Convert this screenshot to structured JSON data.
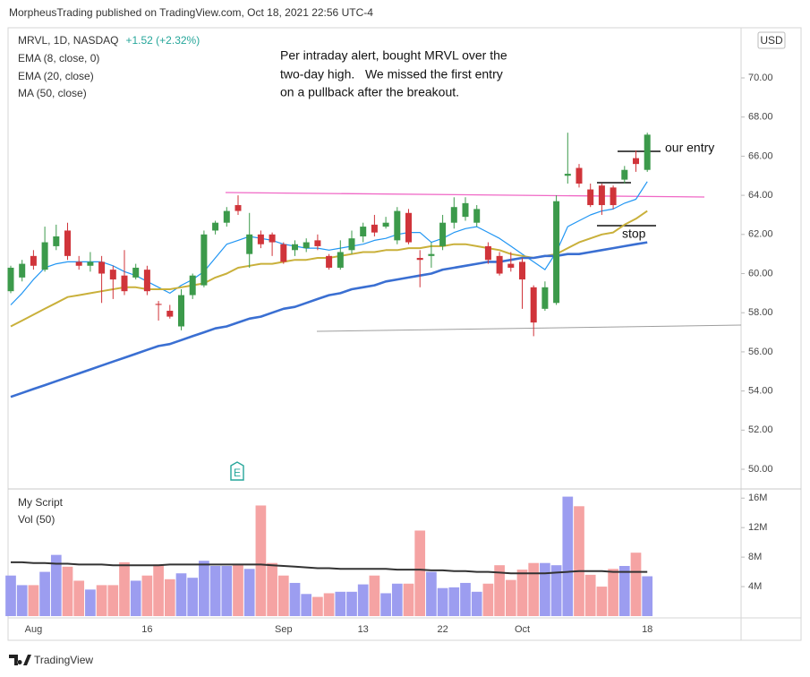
{
  "header": "MorpheusTrading published on TradingView.com, Oct 18, 2021 22:56 UTC-4",
  "footer": "TradingView",
  "chart_data": [
    {
      "type": "candlestick",
      "symbol": "MRVL, 1D, NASDAQ",
      "change": "+1.52 (+2.32%)",
      "currency": "USD",
      "note": [
        "Per intraday alert, bought MRVL over the",
        "two-day high.   We missed the first entry",
        "on a pullback after the breakout."
      ],
      "annotations": [
        "our entry",
        "stop"
      ],
      "earnings": "E",
      "up_color": "#3c9a4b",
      "down_color": "#d0343a",
      "categories": [
        null,
        null,
        "Aug",
        null,
        null,
        null,
        null,
        null,
        null,
        null,
        null,
        null,
        "16",
        null,
        null,
        null,
        null,
        null,
        null,
        null,
        null,
        null,
        null,
        null,
        "Sep",
        null,
        null,
        null,
        null,
        null,
        null,
        "13",
        null,
        null,
        null,
        null,
        null,
        null,
        "22",
        null,
        null,
        null,
        null,
        null,
        null,
        "Oct",
        null,
        null,
        null,
        null,
        null,
        null,
        null,
        null,
        null,
        null,
        "18"
      ],
      "open": [
        59.1,
        59.8,
        60.9,
        60.2,
        61.4,
        62.2,
        60.6,
        60.4,
        60.6,
        60.2,
        59.9,
        59.8,
        60.2,
        58.45,
        58.1,
        57.3,
        58.9,
        59.4,
        62.2,
        62.6,
        63.5,
        61.0,
        62.0,
        62.0,
        61.5,
        61.2,
        61.3,
        61.7,
        60.9,
        60.3,
        61.2,
        61.9,
        62.5,
        62.4,
        61.7,
        63.1,
        60.8,
        60.9,
        61.4,
        62.6,
        62.9,
        62.6,
        61.4,
        60.9,
        60.5,
        60.6,
        59.3,
        58.2,
        58.5,
        65.0,
        65.4,
        64.3,
        64.5,
        64.4,
        64.8,
        65.9,
        65.3
      ],
      "high": [
        60.4,
        60.7,
        61.2,
        62.4,
        62.5,
        62.6,
        60.9,
        61.1,
        60.9,
        60.4,
        61.2,
        60.5,
        60.4,
        58.6,
        58.4,
        59.2,
        60.0,
        62.2,
        62.7,
        63.4,
        64.0,
        63.1,
        62.2,
        62.1,
        61.6,
        61.7,
        61.8,
        62.0,
        61.0,
        61.7,
        62.2,
        62.6,
        63.0,
        62.9,
        63.4,
        63.3,
        61.2,
        61.6,
        63.0,
        63.9,
        63.9,
        63.5,
        61.6,
        61.1,
        61.1,
        60.8,
        59.4,
        59.6,
        64.0,
        67.2,
        65.6,
        64.6,
        64.6,
        64.5,
        65.5,
        66.3,
        67.2
      ],
      "low": [
        59.0,
        59.6,
        60.2,
        60.1,
        61.2,
        60.7,
        60.2,
        60.1,
        58.5,
        58.7,
        58.9,
        59.7,
        58.9,
        57.6,
        57.7,
        57.1,
        58.7,
        59.3,
        62.0,
        62.4,
        63.0,
        60.3,
        61.3,
        60.9,
        60.5,
        60.9,
        61.1,
        61.2,
        60.2,
        60.2,
        61.0,
        61.6,
        61.9,
        62.3,
        61.5,
        61.5,
        59.3,
        60.3,
        61.2,
        62.3,
        62.7,
        62.4,
        60.5,
        59.9,
        60.1,
        58.2,
        56.8,
        58.1,
        58.4,
        64.6,
        64.4,
        63.4,
        63.0,
        63.3,
        64.6,
        65.2,
        65.2
      ],
      "close": [
        60.3,
        60.5,
        60.4,
        61.6,
        61.9,
        60.9,
        60.4,
        60.6,
        60.0,
        59.7,
        59.1,
        60.3,
        59.1,
        58.4,
        57.8,
        58.9,
        59.9,
        62.0,
        62.6,
        63.2,
        63.2,
        62.0,
        61.5,
        61.6,
        60.6,
        61.5,
        61.6,
        61.4,
        60.3,
        61.1,
        61.8,
        62.4,
        62.1,
        62.6,
        63.2,
        61.6,
        60.7,
        61.0,
        62.6,
        63.4,
        63.6,
        63.3,
        60.7,
        60.0,
        60.3,
        59.7,
        57.5,
        59.3,
        63.7,
        65.1,
        64.6,
        63.5,
        63.5,
        63.5,
        65.3,
        65.6,
        67.1
      ],
      "series": [
        {
          "name": "EMA (8, close, 0)",
          "color": "#2196f3",
          "width": 1.2,
          "values": [
            58.4,
            59.0,
            59.7,
            60.3,
            60.5,
            60.6,
            60.6,
            60.6,
            60.6,
            60.4,
            60.1,
            59.9,
            59.6,
            59.3,
            59.0,
            59.4,
            59.7,
            60.1,
            60.8,
            61.5,
            61.7,
            61.9,
            61.8,
            61.7,
            61.5,
            61.4,
            61.3,
            61.3,
            61.2,
            61.3,
            61.4,
            61.5,
            61.7,
            61.8,
            62.0,
            62.1,
            62.1,
            61.6,
            61.8,
            62.1,
            62.3,
            62.4,
            62.1,
            61.8,
            61.4,
            61.0,
            60.6,
            60.2,
            61.1,
            62.4,
            62.7,
            63.0,
            63.2,
            63.3,
            63.6,
            63.8,
            64.7
          ]
        },
        {
          "name": "EMA (20, close)",
          "color": "#c9b03a",
          "width": 2,
          "values": [
            57.3,
            57.6,
            57.9,
            58.2,
            58.5,
            58.8,
            58.9,
            59.0,
            59.1,
            59.2,
            59.3,
            59.3,
            59.2,
            59.2,
            59.2,
            59.3,
            59.4,
            59.5,
            59.8,
            60.0,
            60.3,
            60.4,
            60.5,
            60.5,
            60.6,
            60.7,
            60.7,
            60.8,
            60.8,
            60.9,
            61.0,
            61.1,
            61.1,
            61.2,
            61.2,
            61.3,
            61.3,
            61.4,
            61.4,
            61.5,
            61.5,
            61.4,
            61.3,
            61.2,
            61.0,
            60.9,
            60.8,
            60.9,
            61.0,
            61.3,
            61.6,
            61.8,
            62.0,
            62.1,
            62.5,
            62.8,
            63.2
          ]
        },
        {
          "name": "MA (50, close)",
          "color": "#3a6fd2",
          "width": 2.6,
          "values": [
            53.7,
            53.9,
            54.1,
            54.3,
            54.5,
            54.7,
            54.9,
            55.1,
            55.3,
            55.5,
            55.7,
            55.9,
            56.1,
            56.3,
            56.4,
            56.6,
            56.8,
            57.0,
            57.2,
            57.3,
            57.5,
            57.7,
            57.8,
            58.0,
            58.2,
            58.3,
            58.5,
            58.7,
            58.9,
            59.0,
            59.2,
            59.3,
            59.4,
            59.6,
            59.7,
            59.8,
            59.9,
            60.0,
            60.2,
            60.3,
            60.4,
            60.5,
            60.6,
            60.6,
            60.7,
            60.8,
            60.8,
            60.9,
            60.9,
            61.0,
            61.0,
            61.1,
            61.2,
            61.3,
            61.4,
            61.5,
            61.6
          ]
        }
      ],
      "ylim": [
        49.04,
        72.38
      ],
      "yticks": [
        {
          "value": 50,
          "label": "50.00"
        },
        {
          "value": 52,
          "label": "52.00"
        },
        {
          "value": 54,
          "label": "54.00"
        },
        {
          "value": 56,
          "label": "56.00"
        },
        {
          "value": 58,
          "label": "58.00"
        },
        {
          "value": 60,
          "label": "60.00"
        },
        {
          "value": 62,
          "label": "62.00"
        },
        {
          "value": 64,
          "label": "64.00"
        },
        {
          "value": 66,
          "label": "66.00"
        },
        {
          "value": 68,
          "label": "68.00"
        },
        {
          "value": 70,
          "label": "70.00"
        }
      ],
      "grid": false
    },
    {
      "type": "bar",
      "title": "My Script",
      "up_color": "#9c9df0",
      "down_color": "#f5a3a3",
      "values": [
        5500000,
        4200000,
        4200000,
        6000000,
        8300000,
        6700000,
        4800000,
        3600000,
        4200000,
        4200000,
        7300000,
        4800000,
        5500000,
        7000000,
        5000000,
        5800000,
        5200000,
        7500000,
        6800000,
        6800000,
        6900000,
        6400000,
        15000000,
        7200000,
        5500000,
        4500000,
        3000000,
        2600000,
        3100000,
        3300000,
        3300000,
        4300000,
        5500000,
        3100000,
        4400000,
        4400000,
        11600000,
        6000000,
        3800000,
        3900000,
        4500000,
        3300000,
        4400000,
        6900000,
        4900000,
        6300000,
        7200000,
        7200000,
        6900000,
        16200000,
        14900000,
        5600000,
        4000000,
        6400000,
        6800000,
        8600000,
        5400000
      ],
      "series": [
        {
          "name": "Vol (50)",
          "color": "#333333",
          "width": 2,
          "values": [
            7300000.0,
            7300000.0,
            7200000.0,
            7200000.0,
            7100000.0,
            7100000.0,
            7000000.0,
            7000000.0,
            7000000.0,
            6900000.0,
            6900000.0,
            6900000.0,
            6900000.0,
            6900000.0,
            7000000.0,
            7000000.0,
            7000000.0,
            7000000.0,
            7000000.0,
            7000000.0,
            7000000.0,
            7000000.0,
            7000000.0,
            6900000.0,
            6800000.0,
            6700000.0,
            6600000.0,
            6500000.0,
            6500000.0,
            6400000.0,
            6400000.0,
            6400000.0,
            6400000.0,
            6400000.0,
            6300000.0,
            6300000.0,
            6300000.0,
            6200000.0,
            6200000.0,
            6100000.0,
            6100000.0,
            6000000.0,
            6000000.0,
            5900000.0,
            5800000.0,
            5800000.0,
            5800000.0,
            5800000.0,
            5900000.0,
            6000000.0,
            6100000.0,
            6100000.0,
            6100000.0,
            6000000.0,
            6000000.0,
            6000000.0,
            6000000.0
          ]
        }
      ],
      "ylim": [
        0,
        17000000
      ],
      "yticks": [
        {
          "value": 4000000,
          "label": "4M"
        },
        {
          "value": 8000000,
          "label": "8M"
        },
        {
          "value": 12000000,
          "label": "12M"
        },
        {
          "value": 16000000,
          "label": "16M"
        }
      ],
      "grid": false
    }
  ]
}
